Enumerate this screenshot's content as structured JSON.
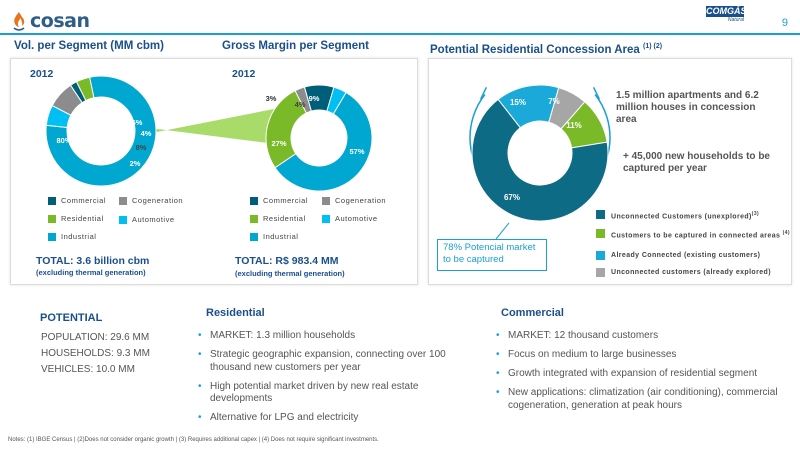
{
  "header": {
    "logo_text": "cosan",
    "page_number": "9",
    "brand_logo_top": "COMGÁS",
    "brand_logo_bottom": "Natural"
  },
  "colors": {
    "commercial": "#005f78",
    "cogeneration": "#8c8c8c",
    "residential": "#7ab927",
    "automotive": "#00c0f3",
    "industrial": "#00a7d0",
    "title_blue": "#1b4f8c",
    "unexplored": "#0e6b85",
    "to_be_captured": "#7ab927",
    "already_connected": "#1aa9d8",
    "already_explored": "#a6a6a6"
  },
  "volume": {
    "title": "Vol. per Segment (MM cbm)",
    "year": "2012",
    "total": "TOTAL: 3.6 billion cbm",
    "total_note": "(excluding thermal generation)",
    "legend": [
      "Commercial",
      "Cogeneration",
      "Residential",
      "Automotive",
      "Industrial"
    ]
  },
  "margin": {
    "title": "Gross Margin per Segment",
    "year": "2012",
    "total": "TOTAL: R$ 983.4 MM",
    "total_note": "(excluding thermal generation)",
    "legend": [
      "Commercial",
      "Cogeneration",
      "Residential",
      "Automotive",
      "Industrial"
    ]
  },
  "concession": {
    "title": "Potential Residential Concession Area",
    "title_sup": "(1) (2)",
    "text1": "1.5 million apartments and 6.2 million houses in concession area",
    "text2": "+ 45,000 new households to be captured per year",
    "callout": "78% Potencial market to be captured",
    "legend": [
      {
        "label": "Unconnected Customers (unexplored)",
        "sup": "(3)"
      },
      {
        "label": "Customers to be captured in connected areas",
        "sup": "(4)"
      },
      {
        "label": "Already Connected (existing customers)",
        "sup": ""
      },
      {
        "label": "Unconnected customers (already explored)",
        "sup": ""
      }
    ]
  },
  "chart_data": [
    {
      "type": "pie",
      "title": "Vol. per Segment (MM cbm)",
      "subtitle": "2012",
      "labels": [
        "Industrial",
        "Automotive",
        "Cogeneration",
        "Commercial",
        "Residential"
      ],
      "values": [
        80,
        6,
        8,
        2,
        4
      ],
      "value_labels": [
        "80%",
        "6%",
        "8%",
        "2%",
        "4%"
      ],
      "colors": [
        "#00a7d0",
        "#00c0f3",
        "#8c8c8c",
        "#005f78",
        "#7ab927"
      ]
    },
    {
      "type": "pie",
      "title": "Gross Margin per Segment",
      "subtitle": "2012",
      "labels": [
        "Commercial",
        "Automotive",
        "Industrial",
        "Residential",
        "Cogeneration"
      ],
      "values": [
        9,
        4,
        57,
        27,
        3
      ],
      "value_labels": [
        "9%",
        "4%",
        "57%",
        "27%",
        "3%"
      ],
      "colors": [
        "#005f78",
        "#00c0f3",
        "#00a7d0",
        "#7ab927",
        "#8c8c8c"
      ]
    },
    {
      "type": "pie",
      "title": "Potential Residential Concession Area",
      "labels": [
        "Already Connected (existing customers)",
        "Unconnected customers (already explored)",
        "Customers to be captured in connected areas",
        "Unconnected Customers (unexplored)"
      ],
      "values": [
        15,
        7,
        11,
        67
      ],
      "value_labels": [
        "15%",
        "7%",
        "11%",
        "67%"
      ],
      "colors": [
        "#1aa9d8",
        "#a6a6a6",
        "#7ab927",
        "#0e6b85"
      ]
    }
  ],
  "potential": {
    "title": "POTENTIAL",
    "lines": [
      "POPULATION: 29.6 MM",
      "HOUSEHOLDS: 9.3 MM",
      "VEHICLES: 10.0 MM"
    ]
  },
  "residential": {
    "title": "Residential",
    "bullets": [
      "MARKET: 1.3 million households",
      "Strategic geographic expansion, connecting over 100 thousand new customers per year",
      "High potential market driven by new real estate developments",
      "Alternative for LPG and electricity"
    ]
  },
  "commercial": {
    "title": "Commercial",
    "bullets": [
      "MARKET: 12 thousand customers",
      "Focus on medium to large businesses",
      "Growth integrated with expansion of residential segment",
      "New applications: climatization (air conditioning), commercial cogeneration, generation at peak hours"
    ]
  },
  "notes": "Notes: (1) IBGE Census | (2)Does not consider organic growth | (3) Requires additional capex | (4) Does not require significant investments."
}
